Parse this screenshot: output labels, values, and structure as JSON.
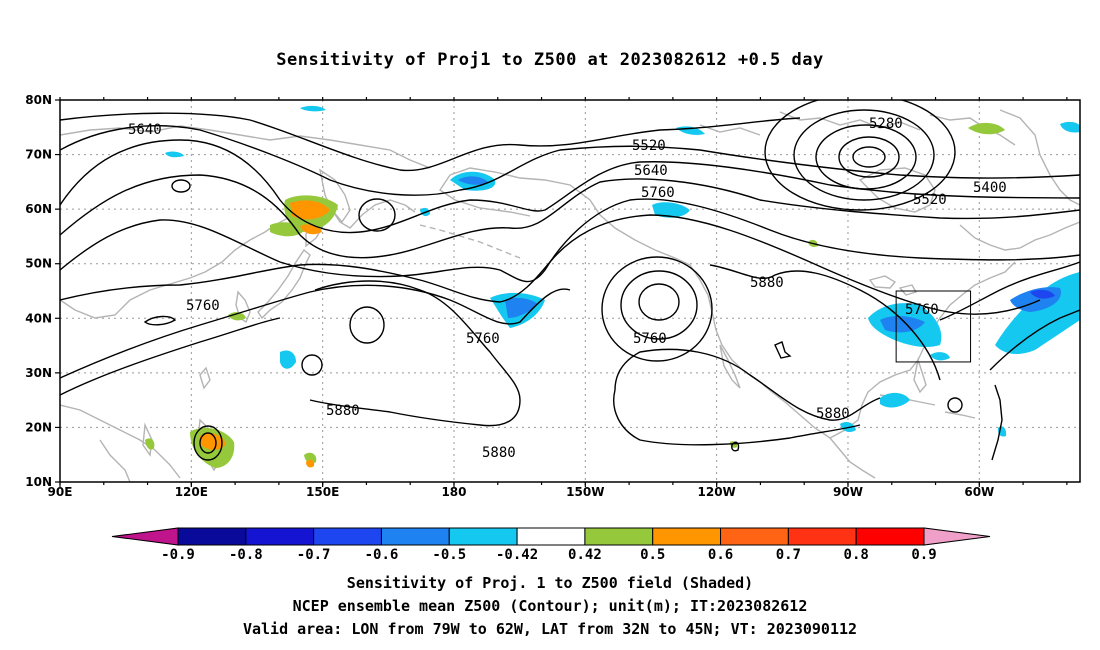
{
  "title": "Sensitivity of Proj1 to Z500 at 2023082612 +0.5 day",
  "lat_ticks": [
    "80N",
    "70N",
    "60N",
    "50N",
    "40N",
    "30N",
    "20N",
    "10N"
  ],
  "lon_ticks": [
    "90E",
    "120E",
    "150E",
    "180",
    "150W",
    "120W",
    "90W",
    "60W"
  ],
  "contour_labels": [
    {
      "id": "c5640-w",
      "text": "5640"
    },
    {
      "id": "c5520-c",
      "text": "5520"
    },
    {
      "id": "c5640-c",
      "text": "5640"
    },
    {
      "id": "c5760-c",
      "text": "5760"
    },
    {
      "id": "c5280-e",
      "text": "5280"
    },
    {
      "id": "c5400-e",
      "text": "5400"
    },
    {
      "id": "c5520-e",
      "text": "5520"
    },
    {
      "id": "c5760-w",
      "text": "5760"
    },
    {
      "id": "c5760-m",
      "text": "5760"
    },
    {
      "id": "c5760-l",
      "text": "5760"
    },
    {
      "id": "c5760-box",
      "text": "5760"
    },
    {
      "id": "c5880-r",
      "text": "5880"
    },
    {
      "id": "c5880-w",
      "text": "5880"
    },
    {
      "id": "c5880-s",
      "text": "5880"
    },
    {
      "id": "c5880-g",
      "text": "5880"
    }
  ],
  "valid_box": {
    "lon": [
      -79,
      -62
    ],
    "lat": [
      32,
      45
    ]
  },
  "colorbar": {
    "labels": [
      "-0.9",
      "-0.8",
      "-0.7",
      "-0.6",
      "-0.5",
      "-0.42",
      "0.42",
      "0.5",
      "0.6",
      "0.7",
      "0.8",
      "0.9"
    ],
    "colors": [
      "#c0148c",
      "#0a0a9a",
      "#1414d2",
      "#1e46f0",
      "#1e82f0",
      "#14c8f0",
      "#ffffff",
      "#96c83c",
      "#ff9600",
      "#ff6414",
      "#ff3214",
      "#ff0000",
      "#f0a0c8"
    ]
  },
  "shading_colors": {
    "light_blue": "#14c8f0",
    "mid_blue": "#1e82f0",
    "dark_blue": "#1e46f0",
    "green": "#96c83c",
    "orange": "#ff9600"
  },
  "captions": {
    "line1": "Sensitivity of Proj. 1 to Z500 field (Shaded)",
    "line2": "NCEP ensemble mean Z500 (Contour); unit(m); IT:2023082612",
    "line3": "Valid area: LON from 79W to 62W, LAT from 32N to 45N; VT: 2023090112"
  }
}
